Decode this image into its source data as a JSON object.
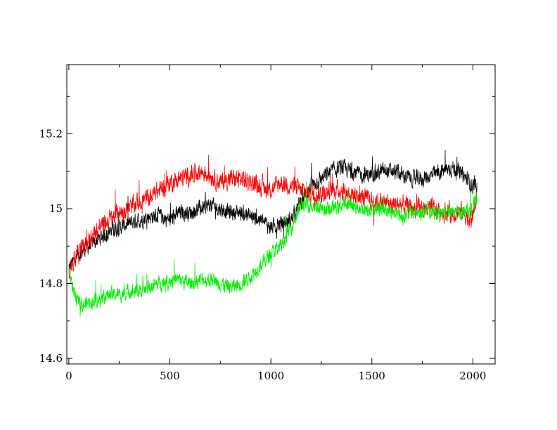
{
  "chart_data": {
    "type": "line",
    "title": "",
    "xlabel": "",
    "ylabel": "",
    "xlim": [
      -10,
      2110
    ],
    "ylim": [
      14.585,
      15.385
    ],
    "x_ticks": [
      0,
      500,
      1000,
      1500,
      2000
    ],
    "y_ticks": [
      14.6,
      14.8,
      15.0,
      15.2
    ],
    "x_tick_labels": [
      "0",
      "500",
      "1000",
      "1500",
      "2000"
    ],
    "y_tick_labels": [
      "14.6",
      "14.8",
      "15",
      "15.2"
    ],
    "grid": false,
    "legend": "none",
    "series": [
      {
        "color": "#000000",
        "x": [
          0,
          50,
          100,
          150,
          200,
          250,
          300,
          350,
          400,
          450,
          500,
          550,
          600,
          650,
          700,
          750,
          800,
          850,
          900,
          950,
          1000,
          1050,
          1100,
          1150,
          1200,
          1250,
          1300,
          1350,
          1400,
          1450,
          1500,
          1550,
          1600,
          1650,
          1700,
          1750,
          1800,
          1850,
          1900,
          1950,
          2000,
          2020
        ],
        "values": [
          14.84,
          14.88,
          14.9,
          14.92,
          14.94,
          14.95,
          14.96,
          14.97,
          14.98,
          14.98,
          14.97,
          14.99,
          14.99,
          15.0,
          15.01,
          15.0,
          14.99,
          14.99,
          14.98,
          14.97,
          14.95,
          14.96,
          14.97,
          15.02,
          15.06,
          15.08,
          15.1,
          15.11,
          15.1,
          15.09,
          15.09,
          15.1,
          15.1,
          15.09,
          15.08,
          15.08,
          15.09,
          15.1,
          15.11,
          15.09,
          15.06,
          15.06
        ],
        "noise": 0.032
      },
      {
        "color": "#ff0000",
        "x": [
          0,
          50,
          100,
          150,
          200,
          250,
          300,
          350,
          400,
          450,
          500,
          550,
          600,
          650,
          700,
          750,
          800,
          850,
          900,
          950,
          1000,
          1050,
          1100,
          1150,
          1200,
          1250,
          1300,
          1350,
          1400,
          1450,
          1500,
          1550,
          1600,
          1650,
          1700,
          1750,
          1800,
          1850,
          1900,
          1950,
          1990,
          2020
        ],
        "values": [
          14.84,
          14.88,
          14.92,
          14.95,
          14.97,
          14.99,
          15.0,
          15.02,
          15.03,
          15.05,
          15.07,
          15.08,
          15.09,
          15.1,
          15.09,
          15.07,
          15.08,
          15.08,
          15.07,
          15.06,
          15.05,
          15.07,
          15.06,
          15.05,
          15.04,
          15.04,
          15.05,
          15.05,
          15.04,
          15.03,
          15.02,
          15.02,
          15.01,
          15.01,
          15.0,
          15.0,
          15.0,
          14.99,
          14.99,
          14.99,
          14.97,
          15.02
        ],
        "noise": 0.038
      },
      {
        "color": "#00ee00",
        "x": [
          0,
          30,
          60,
          100,
          150,
          200,
          250,
          300,
          350,
          400,
          450,
          500,
          550,
          600,
          650,
          700,
          750,
          800,
          850,
          900,
          950,
          1000,
          1050,
          1100,
          1150,
          1200,
          1250,
          1300,
          1350,
          1400,
          1450,
          1500,
          1550,
          1600,
          1650,
          1700,
          1750,
          1800,
          1850,
          1900,
          1950,
          2000,
          2020
        ],
        "values": [
          14.84,
          14.76,
          14.74,
          14.75,
          14.76,
          14.77,
          14.77,
          14.78,
          14.78,
          14.79,
          14.8,
          14.81,
          14.81,
          14.8,
          14.81,
          14.81,
          14.8,
          14.79,
          14.8,
          14.82,
          14.85,
          14.88,
          14.9,
          14.95,
          15.01,
          15.01,
          15.0,
          15.0,
          15.01,
          15.01,
          15.0,
          15.0,
          15.0,
          14.99,
          14.98,
          14.99,
          14.99,
          14.99,
          14.99,
          14.99,
          14.99,
          15.0,
          15.03
        ],
        "noise": 0.03
      }
    ]
  }
}
